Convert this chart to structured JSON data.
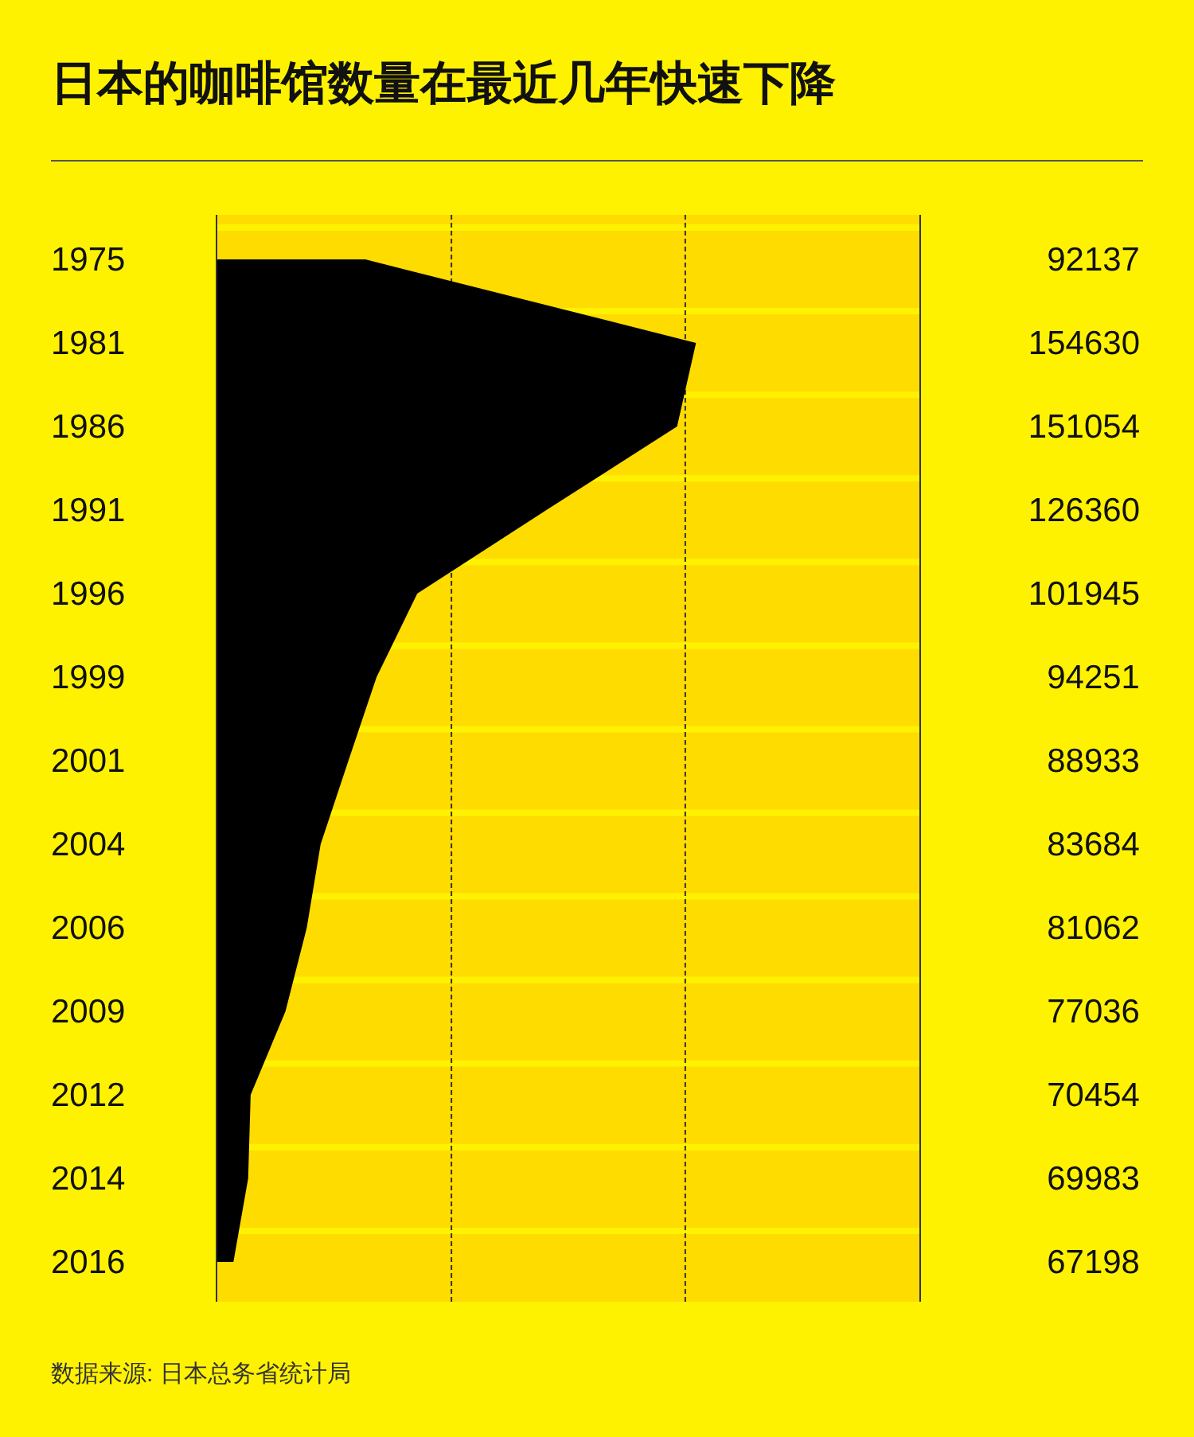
{
  "chart_data": {
    "type": "area",
    "orientation": "horizontal",
    "title": "日本的咖啡馆数量在最近几年快速下降",
    "categories": [
      "1975",
      "1981",
      "1986",
      "1991",
      "1996",
      "1999",
      "2001",
      "2004",
      "2006",
      "2009",
      "2012",
      "2014",
      "2016"
    ],
    "values": [
      92137,
      154630,
      151054,
      126360,
      101945,
      94251,
      88933,
      83684,
      81062,
      77036,
      70454,
      69983,
      67198
    ],
    "color": "#000000",
    "data_labels": true,
    "xlim": [
      64000,
      197000
    ],
    "xticks": [
      {
        "value": 108400,
        "label": null
      },
      {
        "value": 152600,
        "label": null
      }
    ],
    "grid": "x",
    "annotations": [
      "数据来源: 日本总务省统计局"
    ]
  }
}
